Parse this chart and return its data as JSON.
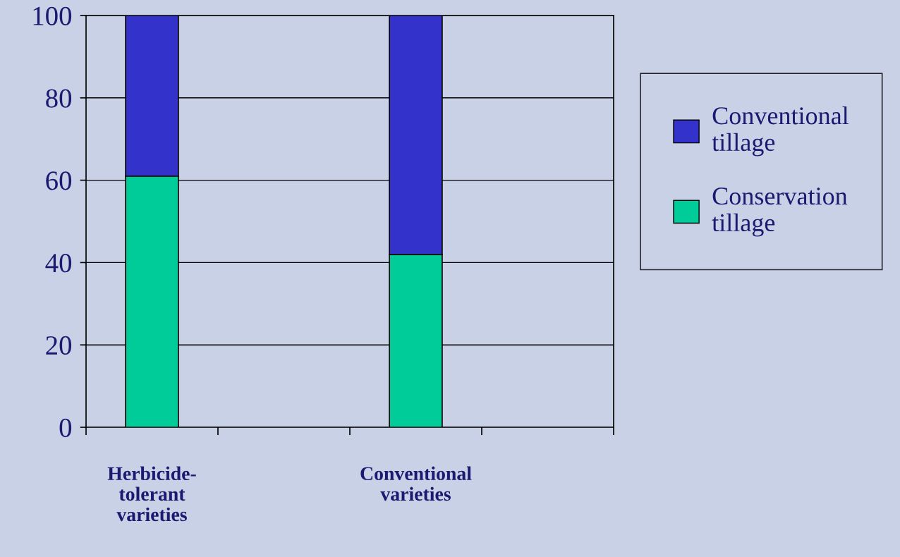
{
  "chart_data": {
    "type": "bar",
    "stacked": true,
    "categories": [
      "Herbicide-\ntolerant\nvarieties",
      null,
      "Conventional\nvarieties",
      null
    ],
    "series": [
      {
        "name": "Conservation\ntillage",
        "color": "#00cc99",
        "values": [
          61,
          null,
          42,
          null
        ]
      },
      {
        "name": "Conventional\ntillage",
        "color": "#3333cc",
        "values": [
          39,
          null,
          58,
          null
        ]
      }
    ],
    "ylim": [
      0,
      100
    ],
    "yticks": [
      0,
      20,
      40,
      60,
      80,
      100
    ],
    "grid": "y",
    "legend": "right"
  }
}
